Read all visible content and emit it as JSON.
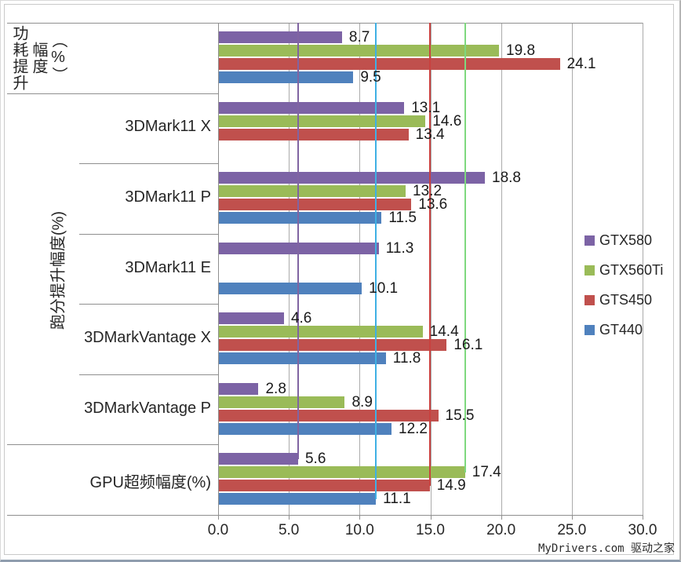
{
  "watermark": "MyDrivers.com 驱动之家",
  "chart_data": {
    "type": "bar",
    "orientation": "horizontal",
    "categories": [
      "功耗提升幅度（%）",
      "3DMark11 X",
      "3DMark11 P",
      "3DMark11 E",
      "3DMarkVantage X",
      "3DMarkVantage P",
      "GPU超频幅度(%)"
    ],
    "inner_category_labels": [
      "",
      "3DMark11 X",
      "3DMark11 P",
      "3DMark11 E",
      "3DMarkVantage X",
      "3DMarkVantage P",
      "GPU超频幅度(%)"
    ],
    "outer_axis_labels": [
      {
        "text": "功耗提升幅度（%）",
        "from_row": 0,
        "to_row": 0,
        "style": "vertical-upright"
      },
      {
        "text": "跑分提升幅度(%)",
        "from_row": 1,
        "to_row": 5,
        "style": "rotated"
      }
    ],
    "series": [
      {
        "name": "GTX580",
        "color": "#7c63a5",
        "values": [
          8.7,
          13.1,
          18.8,
          11.3,
          4.6,
          2.8,
          5.6
        ]
      },
      {
        "name": "GTX560Ti",
        "color": "#9abb58",
        "values": [
          19.8,
          14.6,
          13.2,
          null,
          14.4,
          8.9,
          17.4
        ]
      },
      {
        "name": "GTS450",
        "color": "#c0504d",
        "values": [
          24.1,
          13.4,
          13.6,
          null,
          16.1,
          15.5,
          14.9
        ]
      },
      {
        "name": "GT440",
        "color": "#4f81bd",
        "values": [
          9.5,
          null,
          11.5,
          10.1,
          11.8,
          12.2,
          11.1
        ]
      }
    ],
    "drop_lines": [
      {
        "series": "GTX580",
        "value": 5.6,
        "color": "#8064a2"
      },
      {
        "series": "GTX560Ti",
        "value": 17.4,
        "color": "#7ed87e"
      },
      {
        "series": "GTS450",
        "value": 14.9,
        "color": "#c9413f"
      },
      {
        "series": "GT440",
        "value": 11.1,
        "color": "#3fb0e4"
      }
    ],
    "x_axis": {
      "min": 0,
      "max": 30,
      "step": 5,
      "tick_labels": [
        "0.0",
        "5.0",
        "10.0",
        "15.0",
        "20.0",
        "25.0",
        "30.0"
      ]
    },
    "legend": {
      "position": "right-inside",
      "entries": [
        "GTX580",
        "GTX560Ti",
        "GTS450",
        "GT440"
      ]
    },
    "value_labels_shown": true,
    "grid": "vertical-major"
  }
}
